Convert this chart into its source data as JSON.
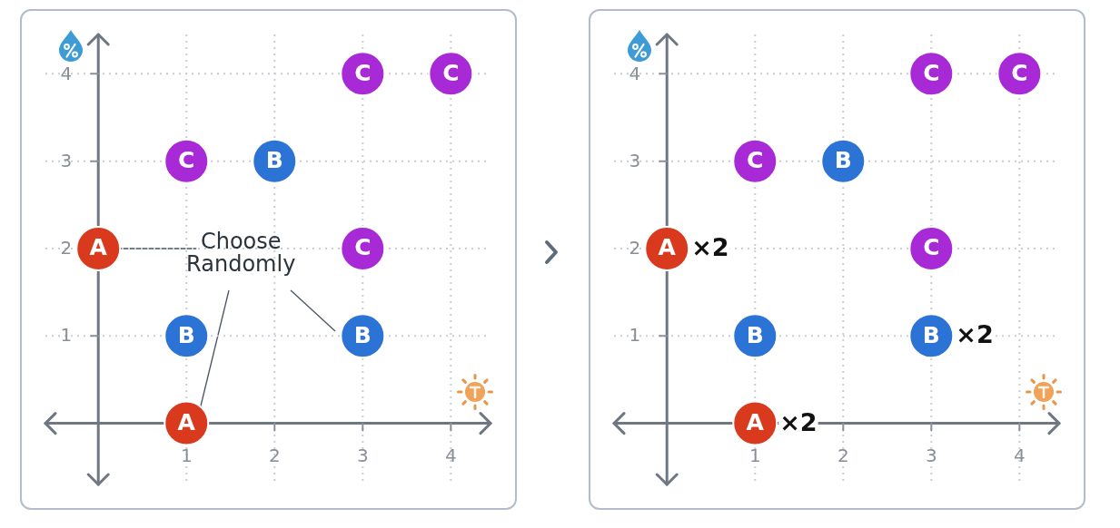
{
  "chart_data": [
    {
      "type": "scatter",
      "xlim": [
        -0.6,
        4.45
      ],
      "ylim": [
        -0.7,
        4.45
      ],
      "xticks": [
        1,
        2,
        3,
        4
      ],
      "yticks": [
        1,
        2,
        3,
        4
      ],
      "grid": true,
      "marker": "circle",
      "series": [
        {
          "name": "A",
          "color": "#d93a1e",
          "x": [
            0,
            1
          ],
          "values": [
            2,
            0
          ]
        },
        {
          "name": "B",
          "color": "#2c73d6",
          "x": [
            1,
            2,
            3
          ],
          "values": [
            1,
            3,
            1
          ]
        },
        {
          "name": "C",
          "color": "#a82ad6",
          "x": [
            1,
            3,
            3,
            4
          ],
          "values": [
            3,
            2,
            4,
            4
          ]
        }
      ],
      "annotations": [
        {
          "text": "Choose Randomly",
          "x": 0,
          "y": 2
        }
      ]
    },
    {
      "type": "scatter",
      "xlim": [
        -0.6,
        4.45
      ],
      "ylim": [
        -0.7,
        4.45
      ],
      "xticks": [
        1,
        2,
        3,
        4
      ],
      "yticks": [
        1,
        2,
        3,
        4
      ],
      "grid": true,
      "marker": "circle",
      "series": [
        {
          "name": "A",
          "color": "#d93a1e",
          "x": [
            0,
            1
          ],
          "values": [
            2,
            0
          ]
        },
        {
          "name": "B",
          "color": "#2c73d6",
          "x": [
            1,
            2,
            3
          ],
          "values": [
            1,
            3,
            1
          ]
        },
        {
          "name": "C",
          "color": "#a82ad6",
          "x": [
            1,
            3,
            3,
            4
          ],
          "values": [
            3,
            2,
            4,
            4
          ]
        }
      ],
      "annotations": [
        {
          "text": "×2",
          "x": 0,
          "y": 2
        },
        {
          "text": "×2",
          "x": 1,
          "y": 0
        },
        {
          "text": "×2",
          "x": 3,
          "y": 1
        }
      ]
    }
  ]
}
